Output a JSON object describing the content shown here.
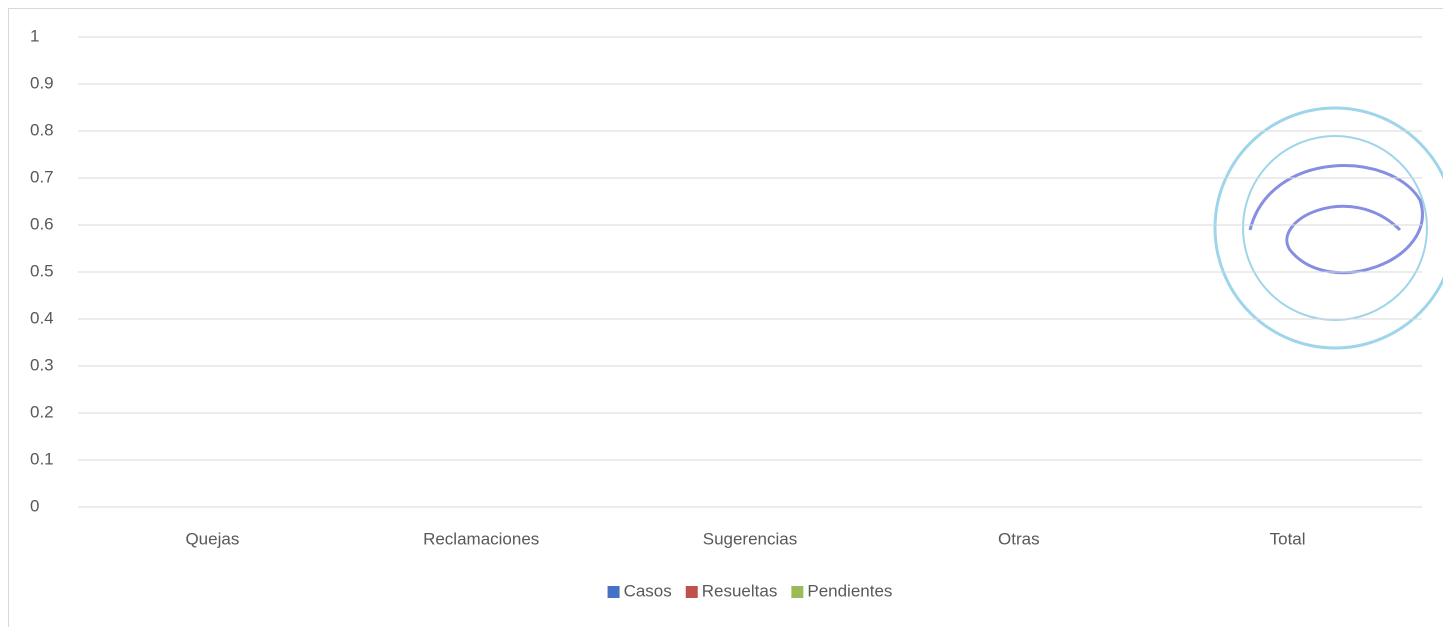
{
  "chart_data": {
    "type": "bar",
    "categories": [
      "Quejas",
      "Reclamaciones",
      "Sugerencias",
      "Otras",
      "Total"
    ],
    "series": [
      {
        "name": "Casos",
        "color": "#4472c4",
        "values": [
          0,
          0,
          0,
          0,
          0
        ]
      },
      {
        "name": "Resueltas",
        "color": "#c0504d",
        "values": [
          0,
          0,
          0,
          0,
          0
        ]
      },
      {
        "name": "Pendientes",
        "color": "#9bbb59",
        "values": [
          0,
          0,
          0,
          0,
          0
        ]
      }
    ],
    "ylim": [
      0,
      1
    ],
    "yticks": [
      0,
      0.1,
      0.2,
      0.3,
      0.4,
      0.5,
      0.6,
      0.7,
      0.8,
      0.9,
      1
    ],
    "grid": true,
    "legend": "bottom"
  }
}
